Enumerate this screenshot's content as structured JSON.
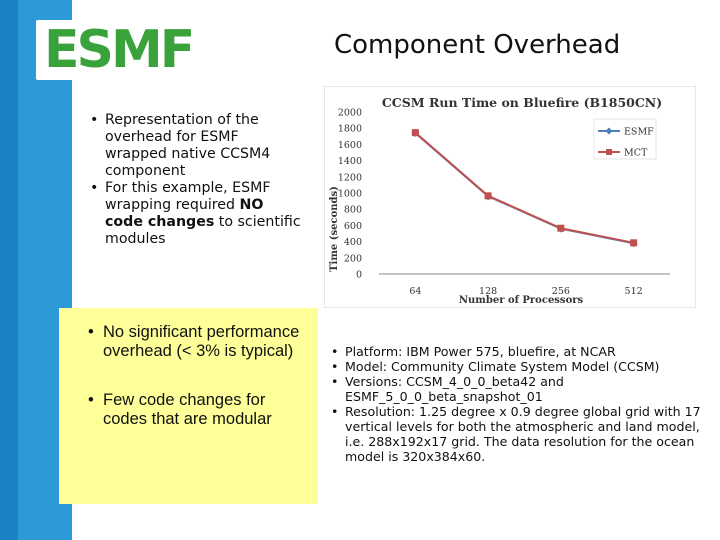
{
  "logo": {
    "text": "ESMF"
  },
  "slide": {
    "title": "Component Overhead"
  },
  "upper_bullets": [
    "Representation of the overhead for ESMF wrapped native CCSM4 component",
    "For this example, ESMF wrapping required NO code changes to scientific modules"
  ],
  "yellow_bullets": [
    "No significant performance overhead (< 3% is typical)",
    "Few code changes for codes that are modular"
  ],
  "lower_bullets": [
    "Platform: IBM Power 575, bluefire, at NCAR",
    "Model: Community Climate System Model (CCSM)",
    "Versions: CCSM_4_0_0_beta42 and ESMF_5_0_0_beta_snapshot_01",
    "Resolution: 1.25 degree x 0.9 degree global grid with 17 vertical levels for both the atmospheric and land model, i.e. 288x192x17 grid.  The data resolution for the ocean model is 320x384x60."
  ],
  "colors": {
    "esmf": "#4f81bd",
    "mct": "#c0504d",
    "sidebar": "#1a83c6",
    "highlight": "#ffff99",
    "logo": "#3aa23a"
  },
  "chart_data": {
    "type": "line",
    "title": "CCSM Run Time on Bluefire (B1850CN)",
    "xlabel": "Number of Processors",
    "ylabel": "Time (seconds)",
    "categories": [
      "64",
      "128",
      "256",
      "512"
    ],
    "ylim": [
      0,
      2000
    ],
    "yticks": [
      0,
      200,
      400,
      600,
      800,
      1000,
      1200,
      1400,
      1600,
      1800,
      2000
    ],
    "legend_position": "top-right",
    "grid": false,
    "series": [
      {
        "name": "ESMF",
        "values": [
          1740,
          960,
          560,
          380
        ]
      },
      {
        "name": "MCT",
        "values": [
          1745,
          965,
          565,
          385
        ]
      }
    ]
  }
}
